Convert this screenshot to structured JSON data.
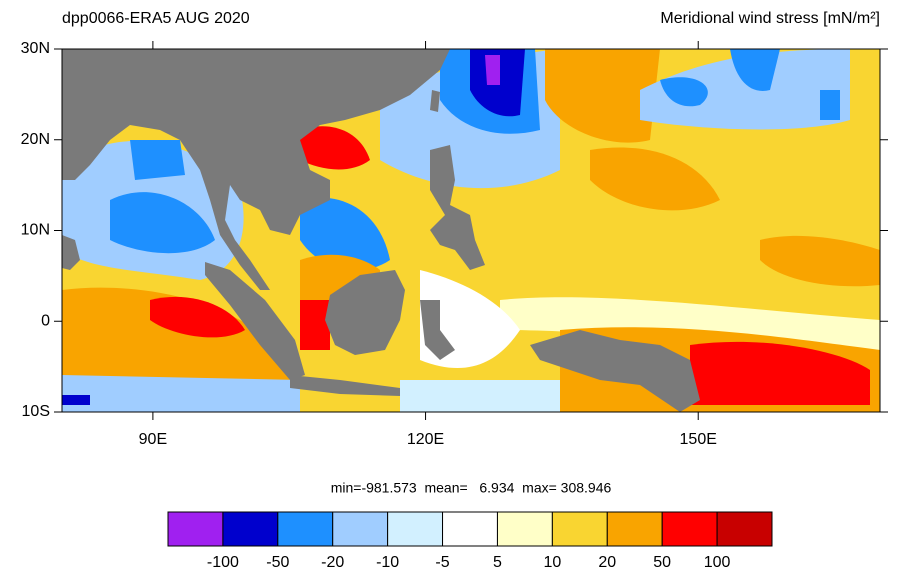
{
  "chart_data": {
    "type": "map",
    "title_left": "dpp0066-ERA5  AUG 2020",
    "title_right": "Meridional wind stress [mN/m²]",
    "stats": "min=-981.573  mean=   6.934  max= 308.946",
    "xlim": [
      80,
      170
    ],
    "ylim": [
      -10,
      30
    ],
    "xticks": [
      {
        "value": 90,
        "label": "90E"
      },
      {
        "value": 120,
        "label": "120E"
      },
      {
        "value": 150,
        "label": "150E"
      }
    ],
    "yticks": [
      {
        "value": 30,
        "label": "30N"
      },
      {
        "value": 20,
        "label": "20N"
      },
      {
        "value": 10,
        "label": "10N"
      },
      0,
      {
        "value": -10,
        "label": "10S"
      }
    ],
    "levels": [
      -100,
      -50,
      -20,
      -10,
      -5,
      5,
      10,
      20,
      50,
      100
    ],
    "colors": [
      "#a020f0",
      "#0000cd",
      "#1e90ff",
      "#a0cdff",
      "#d2f0ff",
      "#ffffff",
      "#ffffc8",
      "#f9d531",
      "#f9a400",
      "#ff0000",
      "#c80000"
    ]
  }
}
